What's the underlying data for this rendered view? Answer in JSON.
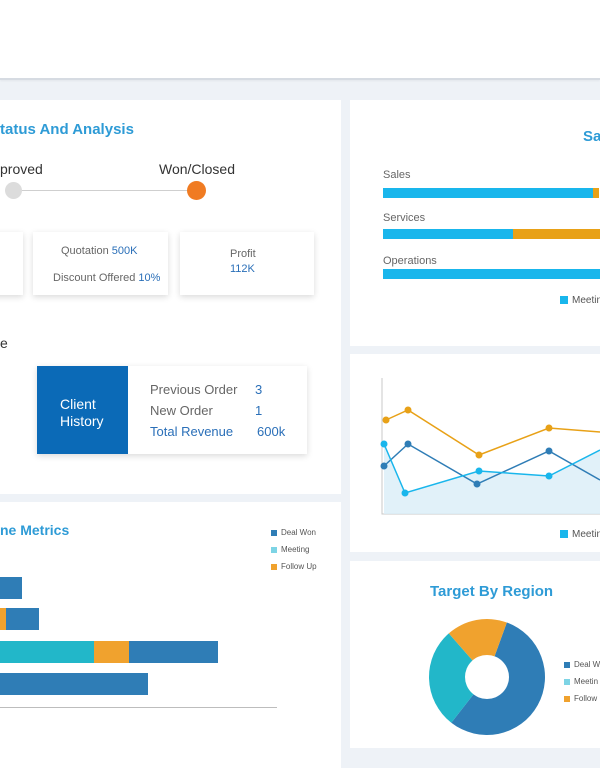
{
  "status": {
    "title": "tatus And Analysis",
    "stage_left": "proved",
    "stage_right": "Won/Closed",
    "quotation_label": "Quotation",
    "quotation_value": "500K",
    "discount_label": "Discount Offered",
    "discount_value": "10%",
    "profit_label": "Profit",
    "profit_value": "112K",
    "partial_label": "e",
    "client_box_line1": "Client",
    "client_box_line2": "History",
    "client_rows": [
      {
        "label": "Previous Order",
        "value": "3"
      },
      {
        "label": "New Order",
        "value": "1"
      },
      {
        "label": "Total Revenue",
        "value": "600k"
      }
    ]
  },
  "metrics": {
    "title": "ne Metrics",
    "legend": [
      "Deal Won",
      "Meeting",
      "Follow Up"
    ],
    "colors": {
      "deal_won": "#2f7db6",
      "meeting": "#22b7c9",
      "follow_up": "#f0a22e"
    },
    "rows": [
      {
        "deal_won": 22,
        "meeting": 0,
        "follow_up": 0
      },
      {
        "deal_won": 33,
        "meeting": 0,
        "follow_up": 6
      },
      {
        "deal_won": 89,
        "meeting": 94,
        "follow_up": 35
      },
      {
        "deal_won": 148,
        "meeting": 0,
        "follow_up": 0
      }
    ]
  },
  "sales_chart": {
    "title": "Sa",
    "categories": [
      "Sales",
      "Services",
      "Operations"
    ],
    "legend_label": "Meetin",
    "colors": {
      "meeting": "#19b6ec",
      "other": "#e8a117"
    },
    "values": [
      {
        "meeting": 210,
        "other": 6
      },
      {
        "meeting": 130,
        "other": 87
      },
      {
        "meeting": 217,
        "other": 0
      }
    ]
  },
  "line_chart": {
    "legend_label": "Meetin",
    "series": [
      {
        "name": "orange",
        "color": "#e8a117",
        "values": [
          62,
          68,
          20,
          0,
          45,
          0,
          40
        ]
      },
      {
        "name": "blue",
        "color": "#2f7db6",
        "values": [
          20,
          38,
          0,
          5,
          33,
          0,
          55
        ]
      },
      {
        "name": "cyan",
        "color": "#19b6ec",
        "values": [
          38,
          0,
          8,
          18,
          16,
          0,
          55
        ]
      }
    ]
  },
  "region": {
    "title": "Target By Region",
    "legend": [
      "Deal Wo",
      "Meetin",
      "Follow U"
    ],
    "colors": [
      "#2f7db6",
      "#22b7c9",
      "#f0a22e"
    ],
    "values": [
      55,
      28,
      17
    ]
  }
}
